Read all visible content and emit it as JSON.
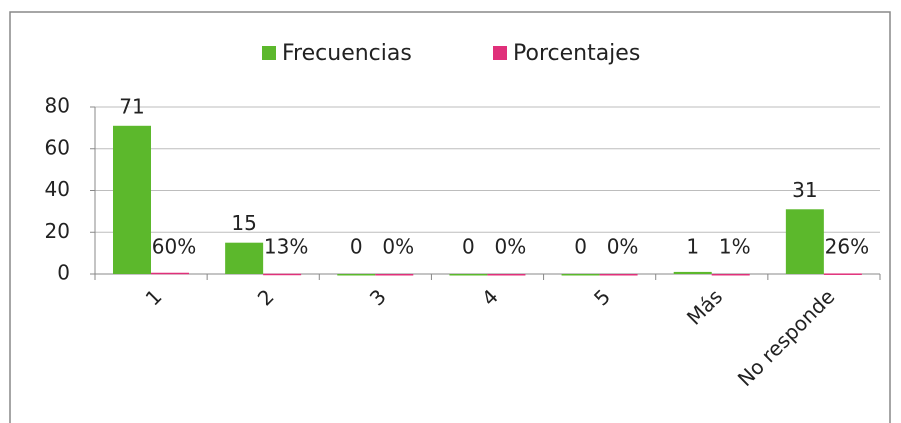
{
  "chart_data": {
    "type": "bar",
    "categories": [
      "1",
      "2",
      "3",
      "4",
      "5",
      "Más",
      "No responde"
    ],
    "series": [
      {
        "name": "Frecuencias",
        "color": "#5cb82c",
        "values": [
          71,
          15,
          0,
          0,
          0,
          1,
          31
        ]
      },
      {
        "name": "Porcentajes",
        "color": "#e0307a",
        "values": [
          0.6,
          0.13,
          0,
          0,
          0,
          0.01,
          0.26
        ],
        "value_labels": [
          "60%",
          "13%",
          "0%",
          "0%",
          "0%",
          "1%",
          "26%"
        ]
      }
    ],
    "ylim": [
      0,
      80
    ],
    "yticks": [
      0,
      20,
      40,
      60,
      80
    ],
    "grid": true,
    "legend": "top"
  }
}
